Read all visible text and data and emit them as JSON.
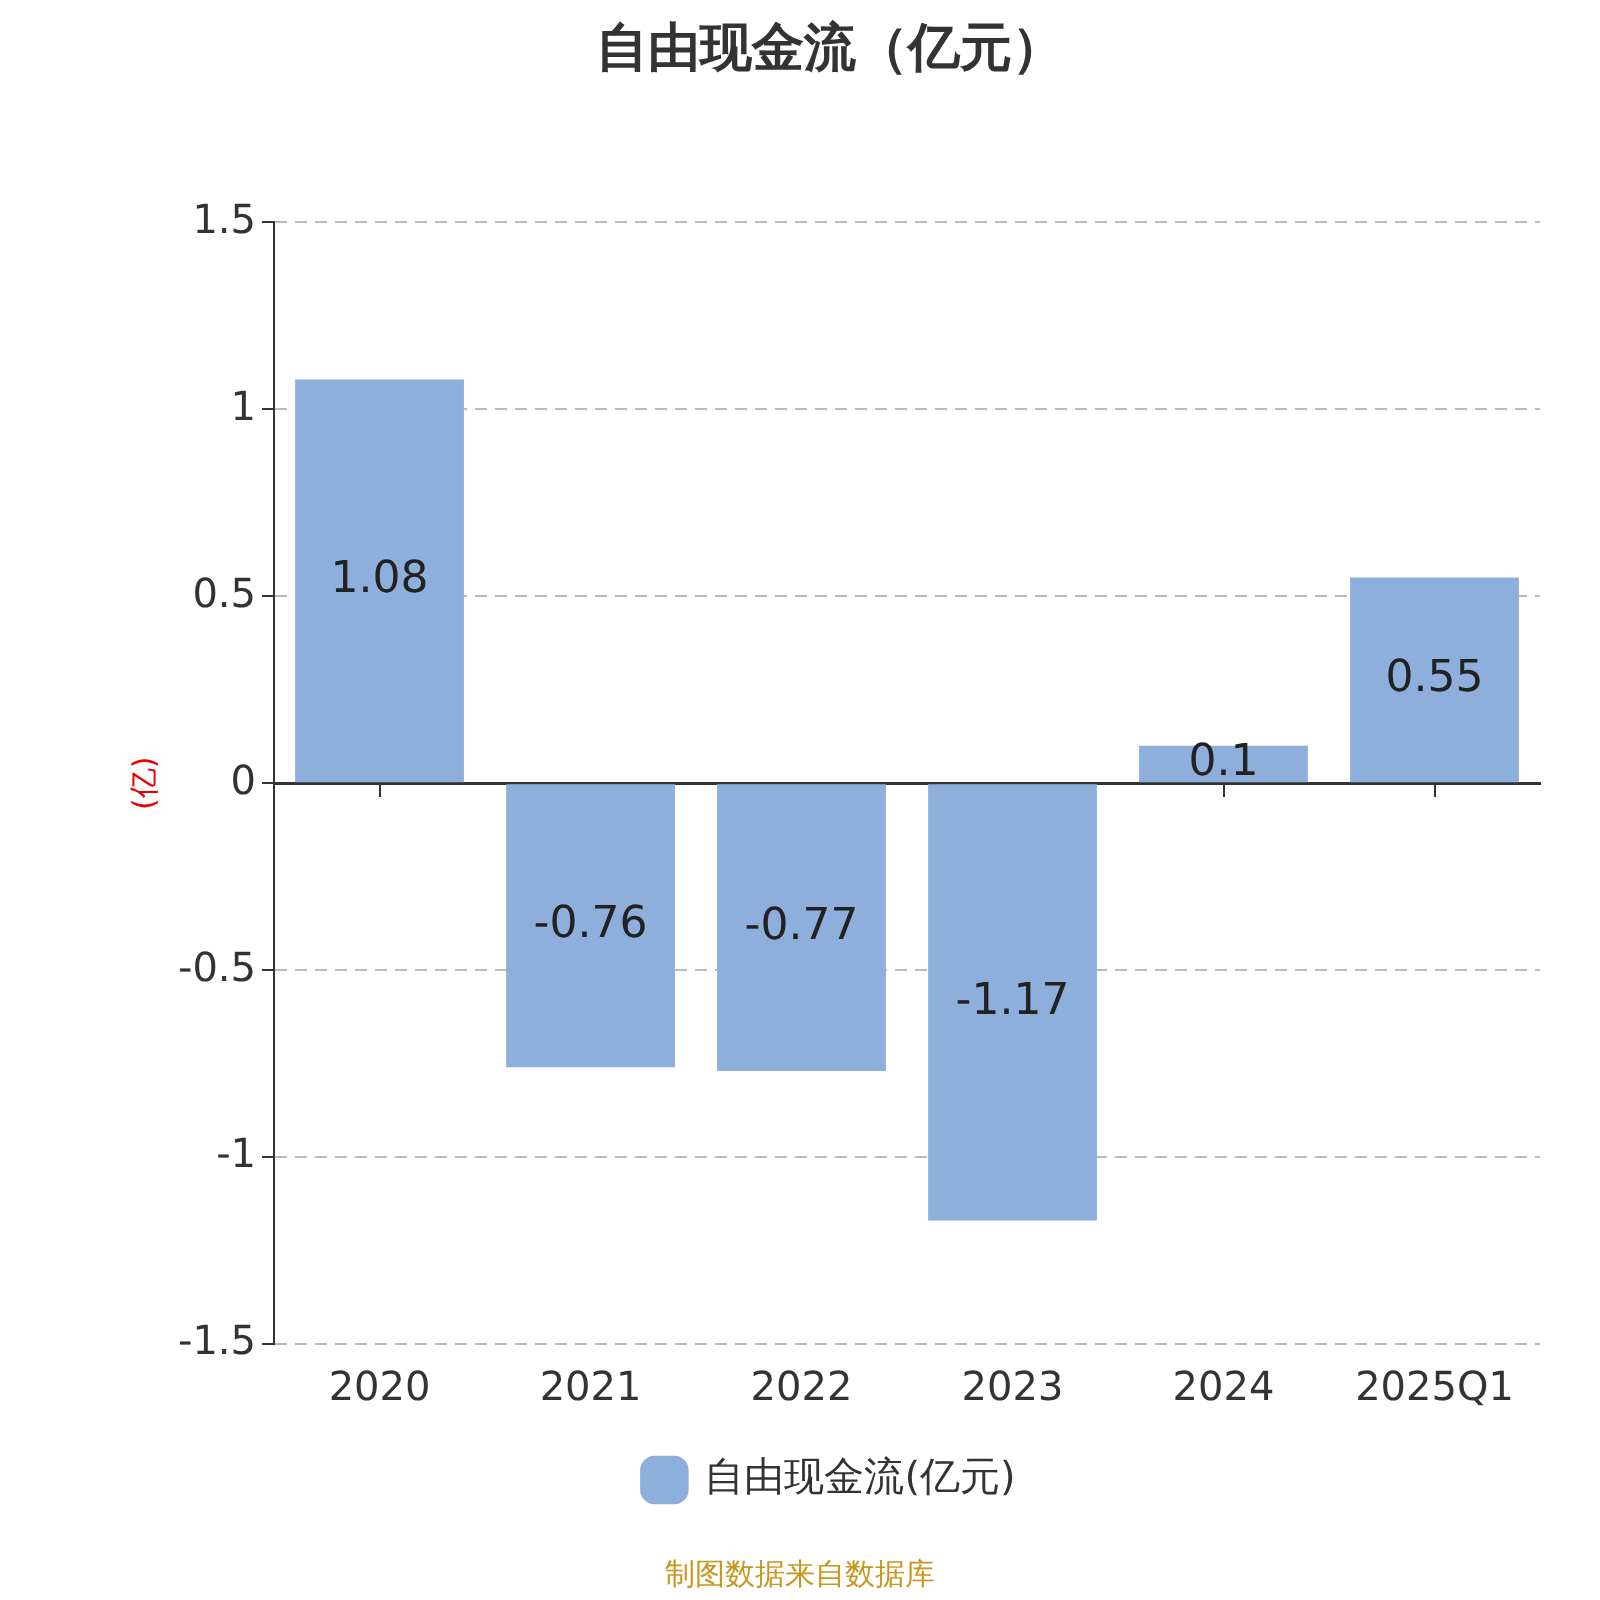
{
  "chart_data": {
    "type": "bar",
    "title": "自由现金流（亿元）",
    "ylabel": "(亿)",
    "categories": [
      "2020",
      "2021",
      "2022",
      "2023",
      "2024",
      "2025Q1"
    ],
    "series": [
      {
        "name": "自由现金流(亿元)",
        "color": "#8eaedb",
        "values": [
          1.08,
          -0.76,
          -0.77,
          -1.17,
          0.1,
          0.55
        ]
      }
    ],
    "ylim": [
      -1.5,
      1.5
    ],
    "yticks": [
      -1.5,
      -1,
      -0.5,
      0,
      0.5,
      1,
      1.5
    ],
    "grid": "y",
    "legend": "bottom",
    "data_labels": true,
    "annotations": [
      "制图数据来自数据库"
    ]
  }
}
